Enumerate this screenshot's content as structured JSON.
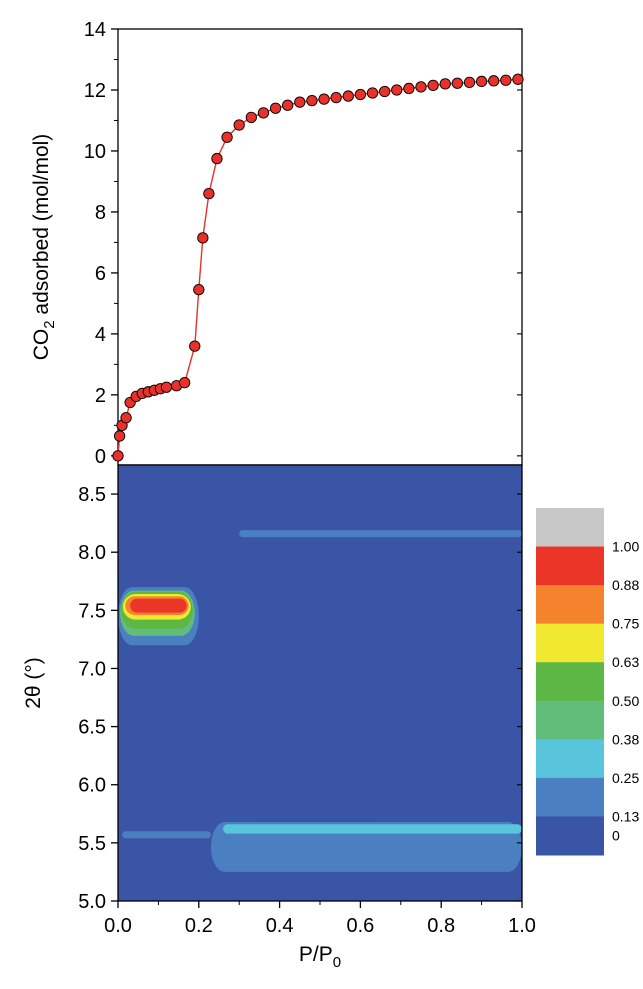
{
  "colors": {
    "marker_fill": "#e8312a",
    "marker_edge": "#000000",
    "line": "#e8312a",
    "axis": "#000000"
  },
  "chart_data": [
    {
      "type": "line",
      "title": "",
      "xlabel": "",
      "ylabel_main": "CO",
      "ylabel_sub": "2",
      "ylabel_rest": " adsorbed (mol/mol)",
      "xlim": [
        0,
        1.0
      ],
      "ylim": [
        -0.3,
        14
      ],
      "yticks": [
        0,
        2,
        4,
        6,
        8,
        10,
        12,
        14
      ],
      "ytick_labels": [
        "0",
        "2",
        "4",
        "6",
        "8",
        "10",
        "12",
        "14"
      ],
      "grid": false,
      "series": [
        {
          "markers": true,
          "x": [
            0.0,
            0.004,
            0.01,
            0.02,
            0.03,
            0.045,
            0.06,
            0.075,
            0.09,
            0.105,
            0.12,
            0.145,
            0.165,
            0.19,
            0.2,
            0.21,
            0.225,
            0.245,
            0.27,
            0.3,
            0.33,
            0.36,
            0.39,
            0.42,
            0.45,
            0.48,
            0.51,
            0.54,
            0.57,
            0.6,
            0.63,
            0.66,
            0.69,
            0.72,
            0.75,
            0.78,
            0.81,
            0.84,
            0.87,
            0.9,
            0.93,
            0.96,
            0.99
          ],
          "y": [
            0.0,
            0.65,
            1.0,
            1.25,
            1.75,
            1.95,
            2.05,
            2.1,
            2.15,
            2.2,
            2.25,
            2.3,
            2.4,
            3.6,
            5.45,
            7.15,
            8.6,
            9.75,
            10.45,
            10.85,
            11.1,
            11.25,
            11.4,
            11.5,
            11.6,
            11.65,
            11.7,
            11.75,
            11.8,
            11.85,
            11.9,
            11.95,
            12.0,
            12.05,
            12.1,
            12.15,
            12.2,
            12.22,
            12.25,
            12.28,
            12.3,
            12.32,
            12.35
          ]
        }
      ]
    },
    {
      "type": "heatmap",
      "title": "",
      "xlabel_main": "P/P",
      "xlabel_sub": "0",
      "ylabel": "2θ (°)",
      "xlim": [
        0,
        1.0
      ],
      "ylim": [
        5.0,
        8.75
      ],
      "xticks": [
        0.0,
        0.2,
        0.4,
        0.6,
        0.8,
        1.0
      ],
      "xtick_labels": [
        "0.0",
        "0.2",
        "0.4",
        "0.6",
        "0.8",
        "1.0"
      ],
      "yticks": [
        5.0,
        5.5,
        6.0,
        6.5,
        7.0,
        7.5,
        8.0,
        8.5
      ],
      "ytick_labels": [
        "5.0",
        "5.5",
        "6.0",
        "6.5",
        "7.0",
        "7.5",
        "8.0",
        "8.5"
      ],
      "background_color": "#3a55a5",
      "features": [
        {
          "name": "band-8.5",
          "level": 0.13,
          "x": [
            0.24,
            1.0
          ],
          "y": [
            8.38,
            8.58
          ]
        },
        {
          "name": "band-8.3",
          "level": 0.13,
          "x": [
            0.21,
            1.0
          ],
          "y": [
            8.05,
            8.3
          ]
        },
        {
          "name": "band-8.15",
          "level": 0.25,
          "x": [
            0.3,
            1.0
          ],
          "y": [
            8.13,
            8.19
          ]
        },
        {
          "name": "band-6.95",
          "level": 0.13,
          "x": [
            0.27,
            0.93
          ],
          "y": [
            6.93,
            6.99
          ]
        },
        {
          "name": "lower-outer",
          "level": 0.13,
          "x": [
            0.0,
            1.0
          ],
          "y": [
            5.14,
            5.7
          ]
        },
        {
          "name": "lower-main",
          "level": 0.25,
          "x": [
            0.23,
            1.0
          ],
          "y": [
            5.25,
            5.68
          ]
        },
        {
          "name": "lower-left",
          "level": 0.25,
          "x": [
            0.01,
            0.23
          ],
          "y": [
            5.54,
            5.6
          ]
        },
        {
          "name": "lower-strip",
          "level": 0.38,
          "x": [
            0.26,
            1.0
          ],
          "y": [
            5.58,
            5.66
          ]
        },
        {
          "name": "peak-0.13",
          "level": 0.13,
          "x": [
            0.0,
            0.22
          ],
          "y": [
            7.12,
            7.8
          ]
        },
        {
          "name": "peak-0.25",
          "level": 0.25,
          "x": [
            0.0,
            0.2
          ],
          "y": [
            7.2,
            7.7
          ]
        },
        {
          "name": "peak-0.50",
          "level": 0.5,
          "x": [
            0.005,
            0.19
          ],
          "y": [
            7.28,
            7.67
          ]
        },
        {
          "name": "peak-0.63",
          "level": 0.63,
          "x": [
            0.008,
            0.185
          ],
          "y": [
            7.34,
            7.66
          ]
        },
        {
          "name": "peak-0.75",
          "level": 0.75,
          "x": [
            0.012,
            0.18
          ],
          "y": [
            7.42,
            7.64
          ]
        },
        {
          "name": "peak-0.88",
          "level": 0.88,
          "x": [
            0.018,
            0.175
          ],
          "y": [
            7.46,
            7.62
          ]
        },
        {
          "name": "peak-1.00",
          "level": 1.0,
          "x": [
            0.03,
            0.17
          ],
          "y": [
            7.48,
            7.6
          ]
        }
      ]
    }
  ],
  "colorbar": {
    "labels": [
      "1.00",
      "0.88",
      "0.75",
      "0.63",
      "0.50",
      "0.38",
      "0.25",
      "0.13",
      "0"
    ],
    "swatches": [
      {
        "level": 1.1,
        "color": "#c8c8c8"
      },
      {
        "level": 1.0,
        "color": "#ec3529"
      },
      {
        "level": 0.88,
        "color": "#f5832d"
      },
      {
        "level": 0.75,
        "color": "#f0e930"
      },
      {
        "level": 0.63,
        "color": "#5db744"
      },
      {
        "level": 0.5,
        "color": "#60bd7a"
      },
      {
        "level": 0.38,
        "color": "#58c5dc"
      },
      {
        "level": 0.25,
        "color": "#4a7fc1"
      },
      {
        "level": 0.13,
        "color": "#3a55a5"
      }
    ]
  }
}
